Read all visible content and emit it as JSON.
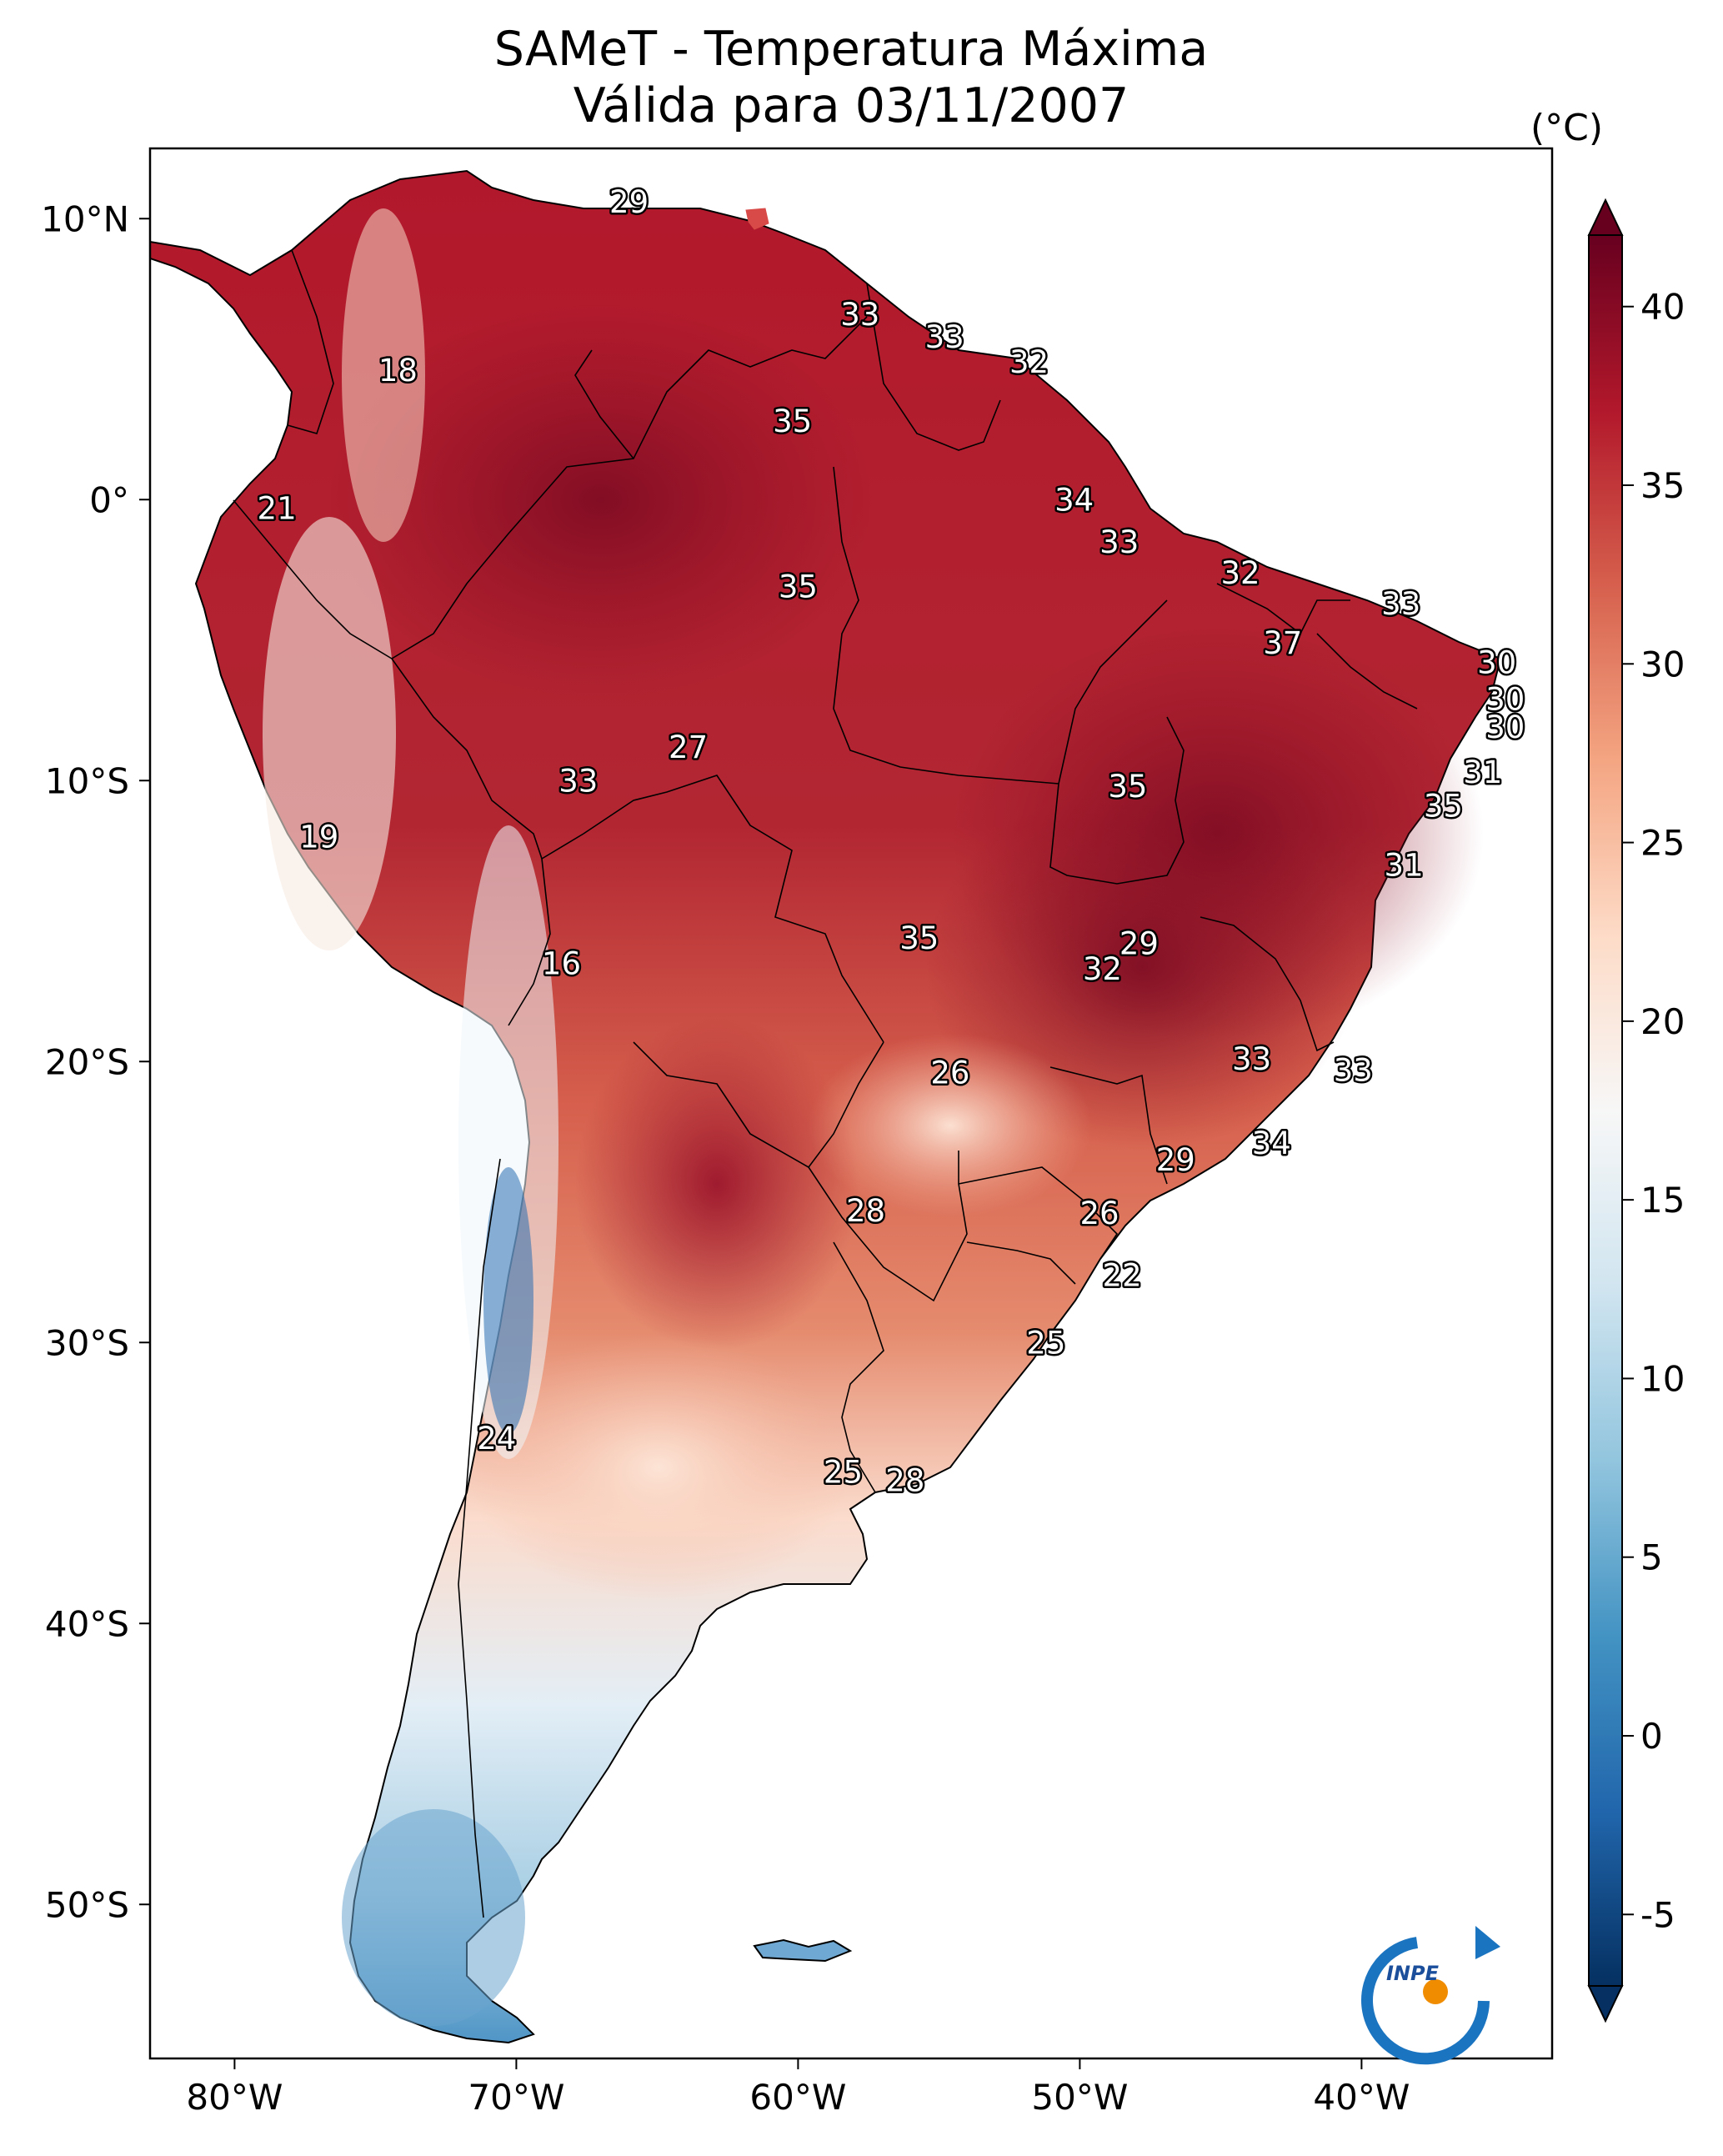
{
  "header": {
    "title": "SAMeT - Temperatura Máxima",
    "subtitle": "Válida para 03/11/2007"
  },
  "axes": {
    "lon_ticks": [
      "80°W",
      "70°W",
      "60°W",
      "50°W",
      "40°W"
    ],
    "lat_ticks": [
      "10°N",
      "0°",
      "10°S",
      "20°S",
      "30°S",
      "40°S",
      "50°S"
    ]
  },
  "colorbar": {
    "unit": "(°C)",
    "ticks": [
      "40",
      "35",
      "30",
      "25",
      "20",
      "15",
      "10",
      "5",
      "0",
      "-5"
    ],
    "min": -7,
    "max": 42,
    "colors": [
      "#053061",
      "#2166ac",
      "#4393c3",
      "#92c5de",
      "#d1e5f0",
      "#f7f7f7",
      "#fddbc7",
      "#f4a582",
      "#d6604d",
      "#b2182b",
      "#67001f"
    ]
  },
  "stations": [
    {
      "value": "29",
      "lon": -66.0,
      "lat": 10.6
    },
    {
      "value": "18",
      "lon": -74.2,
      "lat": 4.6
    },
    {
      "value": "33",
      "lon": -57.8,
      "lat": 6.6
    },
    {
      "value": "33",
      "lon": -54.8,
      "lat": 5.8
    },
    {
      "value": "32",
      "lon": -51.8,
      "lat": 4.9
    },
    {
      "value": "35",
      "lon": -60.2,
      "lat": 2.8
    },
    {
      "value": "21",
      "lon": -78.5,
      "lat": -0.3
    },
    {
      "value": "34",
      "lon": -50.2,
      "lat": 0.0
    },
    {
      "value": "33",
      "lon": -48.6,
      "lat": -1.5
    },
    {
      "value": "35",
      "lon": -60.0,
      "lat": -3.1
    },
    {
      "value": "32",
      "lon": -44.3,
      "lat": -2.6
    },
    {
      "value": "33",
      "lon": -38.6,
      "lat": -3.7
    },
    {
      "value": "37",
      "lon": -42.8,
      "lat": -5.1
    },
    {
      "value": "30",
      "lon": -35.2,
      "lat": -5.8
    },
    {
      "value": "30",
      "lon": -34.9,
      "lat": -7.1
    },
    {
      "value": "30",
      "lon": -34.9,
      "lat": -8.1
    },
    {
      "value": "27",
      "lon": -63.9,
      "lat": -8.8
    },
    {
      "value": "33",
      "lon": -67.8,
      "lat": -10.0
    },
    {
      "value": "35",
      "lon": -48.3,
      "lat": -10.2
    },
    {
      "value": "31",
      "lon": -35.7,
      "lat": -9.7
    },
    {
      "value": "35",
      "lon": -37.1,
      "lat": -10.9
    },
    {
      "value": "19",
      "lon": -77.0,
      "lat": -12.0
    },
    {
      "value": "31",
      "lon": -38.5,
      "lat": -13.0
    },
    {
      "value": "35",
      "lon": -55.7,
      "lat": -15.6
    },
    {
      "value": "29",
      "lon": -47.9,
      "lat": -15.8
    },
    {
      "value": "32",
      "lon": -49.2,
      "lat": -16.7
    },
    {
      "value": "16",
      "lon": -68.4,
      "lat": -16.5
    },
    {
      "value": "26",
      "lon": -54.6,
      "lat": -20.4
    },
    {
      "value": "33",
      "lon": -43.9,
      "lat": -19.9
    },
    {
      "value": "33",
      "lon": -40.3,
      "lat": -20.3
    },
    {
      "value": "34",
      "lon": -43.2,
      "lat": -22.9
    },
    {
      "value": "29",
      "lon": -46.6,
      "lat": -23.5
    },
    {
      "value": "28",
      "lon": -57.6,
      "lat": -25.3
    },
    {
      "value": "26",
      "lon": -49.3,
      "lat": -25.4
    },
    {
      "value": "22",
      "lon": -48.5,
      "lat": -27.6
    },
    {
      "value": "25",
      "lon": -51.2,
      "lat": -30.0
    },
    {
      "value": "24",
      "lon": -70.7,
      "lat": -33.4
    },
    {
      "value": "25",
      "lon": -58.4,
      "lat": -34.6
    },
    {
      "value": "28",
      "lon": -56.2,
      "lat": -34.9
    }
  ],
  "logo": {
    "text": "INPE"
  }
}
